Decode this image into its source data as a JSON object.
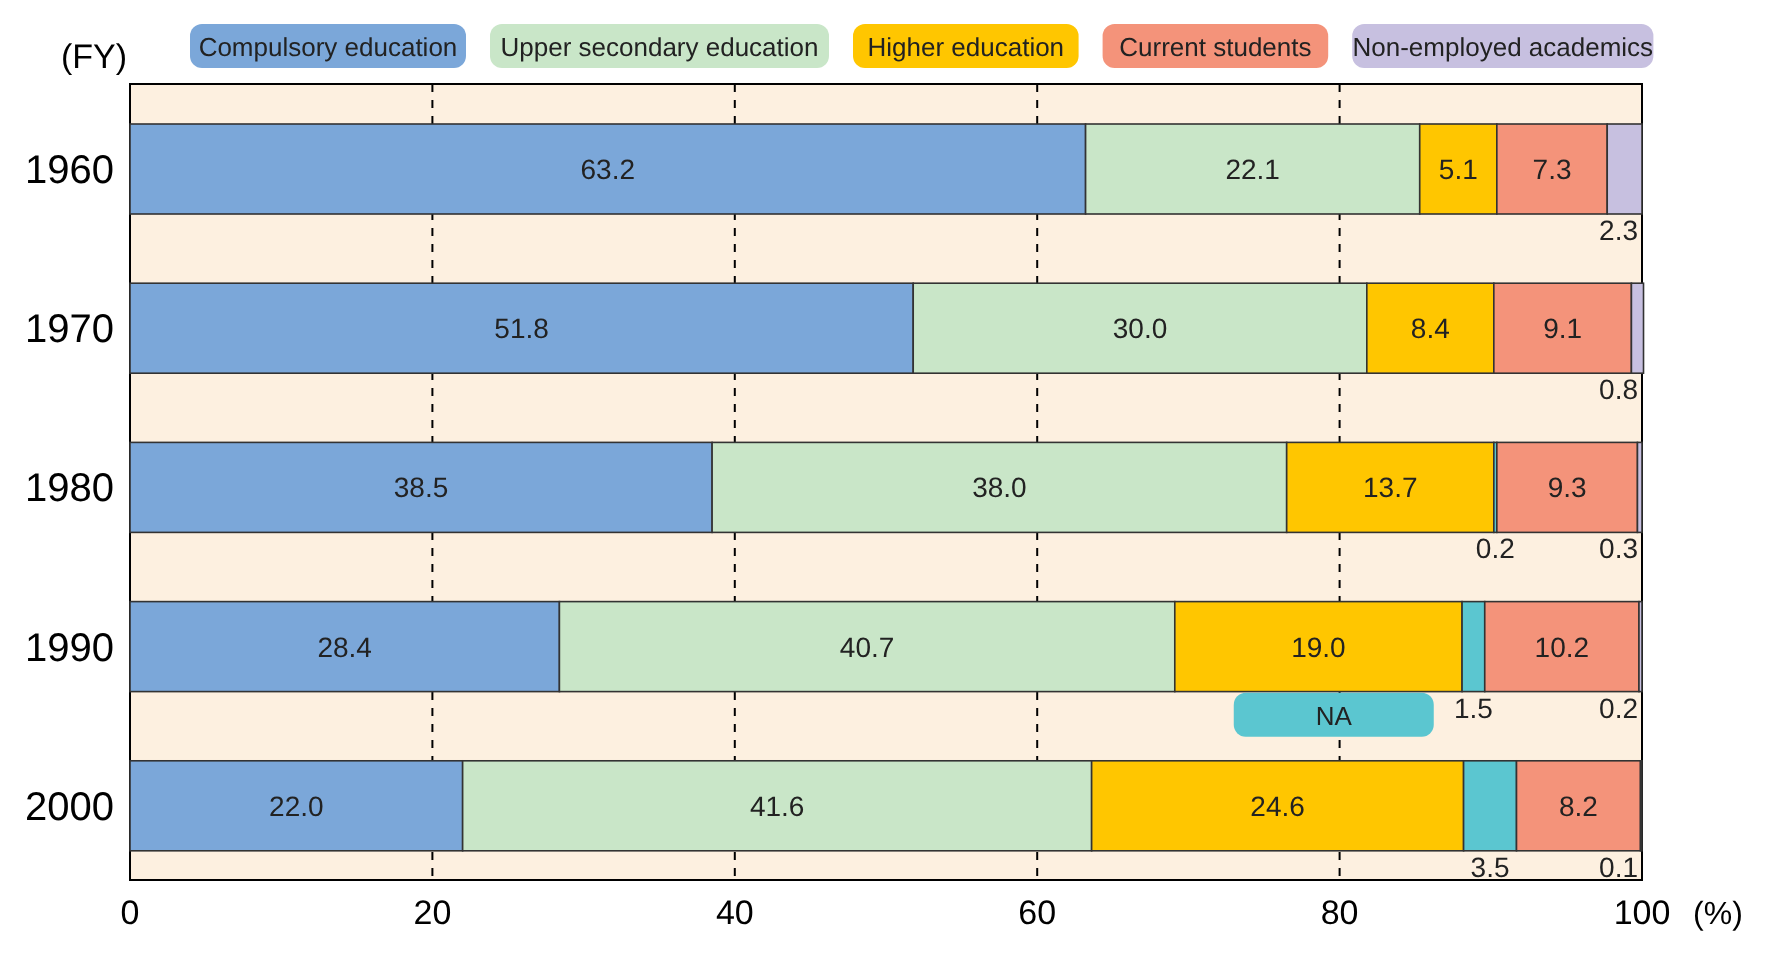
{
  "chart_data": {
    "type": "bar",
    "orientation": "horizontal",
    "stacked": true,
    "ylabel": "(FY)",
    "xlabel": "(%)",
    "categories": [
      "1960",
      "1970",
      "1980",
      "1990",
      "2000"
    ],
    "xlim": [
      0,
      100
    ],
    "xticks": [
      0,
      20,
      40,
      60,
      80,
      100
    ],
    "grid": "x",
    "legend": "top",
    "series": [
      {
        "name": "Compulsory education",
        "color": "#7ba7d9",
        "values": [
          63.2,
          51.8,
          38.5,
          28.4,
          22.0
        ],
        "value_labels": [
          "63.2",
          "51.8",
          "38.5",
          "28.4",
          "22.0"
        ]
      },
      {
        "name": "Upper secondary education",
        "color": "#c9e6c8",
        "values": [
          22.1,
          30.0,
          38.0,
          40.7,
          41.6
        ],
        "value_labels": [
          "22.1",
          "30.0",
          "38.0",
          "40.7",
          "41.6"
        ]
      },
      {
        "name": "Higher education",
        "color": "#ffc600",
        "values": [
          5.1,
          8.4,
          13.7,
          19.0,
          24.6
        ],
        "value_labels": [
          "5.1",
          "8.4",
          "13.7",
          "19.0",
          "24.6"
        ]
      },
      {
        "name": "NA",
        "color": "#5bc6d0",
        "values": [
          null,
          null,
          0.2,
          1.5,
          3.5
        ],
        "value_labels": [
          null,
          null,
          "0.2",
          "1.5",
          "3.5"
        ]
      },
      {
        "name": "Current students",
        "color": "#f4937a",
        "values": [
          7.3,
          9.1,
          9.3,
          10.2,
          8.2
        ],
        "value_labels": [
          "7.3",
          "9.1",
          "9.3",
          "10.2",
          "8.2"
        ]
      },
      {
        "name": "Non-employed academics",
        "color": "#c7c0e0",
        "values": [
          2.3,
          0.8,
          0.3,
          0.2,
          0.1
        ],
        "value_labels": [
          "2.3",
          "0.8",
          "0.3",
          "0.2",
          "0.1"
        ]
      }
    ]
  }
}
